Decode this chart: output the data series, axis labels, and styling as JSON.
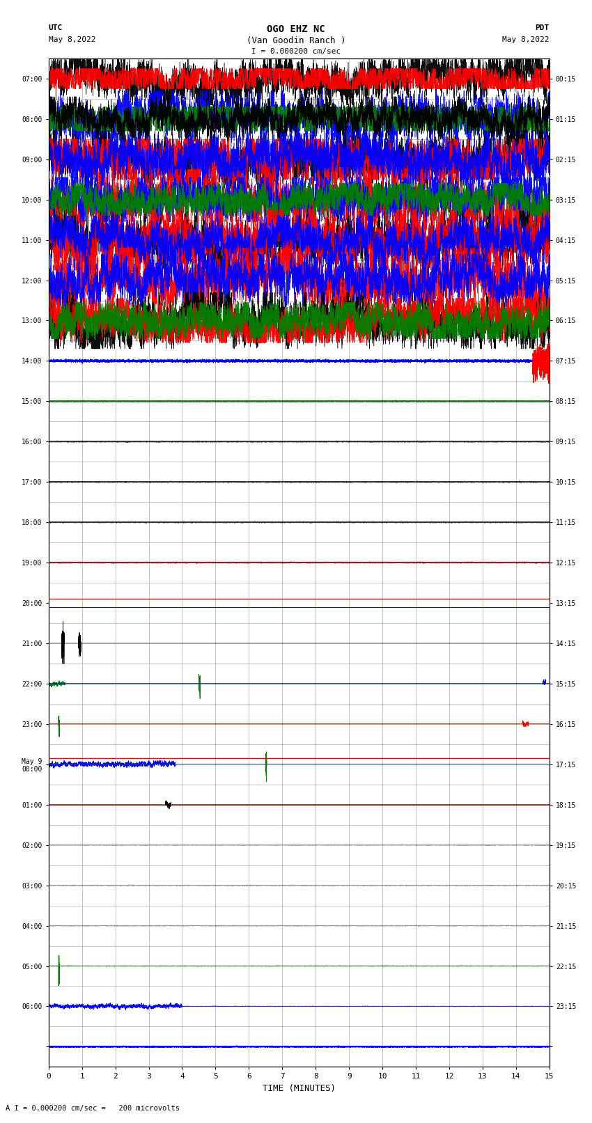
{
  "title_line1": "OGO EHZ NC",
  "title_line2": "(Van Goodin Ranch )",
  "scale_label": "I = 0.000200 cm/sec",
  "bottom_label": "A I = 0.000200 cm/sec =   200 microvolts",
  "utc_label": "UTC",
  "utc_date": "May 8,2022",
  "pdt_label": "PDT",
  "pdt_date": "May 8,2022",
  "xlabel": "TIME (MINUTES)",
  "left_times_utc": [
    "07:00",
    "08:00",
    "09:00",
    "10:00",
    "11:00",
    "12:00",
    "13:00",
    "14:00",
    "15:00",
    "16:00",
    "17:00",
    "18:00",
    "19:00",
    "20:00",
    "21:00",
    "22:00",
    "23:00",
    "May 9\n00:00",
    "01:00",
    "02:00",
    "03:00",
    "04:00",
    "05:00",
    "06:00",
    ""
  ],
  "right_times_pdt": [
    "00:15",
    "01:15",
    "02:15",
    "03:15",
    "04:15",
    "05:15",
    "06:15",
    "07:15",
    "08:15",
    "09:15",
    "10:15",
    "11:15",
    "12:15",
    "13:15",
    "14:15",
    "15:15",
    "16:15",
    "17:15",
    "18:15",
    "19:15",
    "20:15",
    "21:15",
    "22:15",
    "23:15",
    ""
  ],
  "num_rows": 25,
  "xlim": [
    0,
    15
  ],
  "xticks": [
    0,
    1,
    2,
    3,
    4,
    5,
    6,
    7,
    8,
    9,
    10,
    11,
    12,
    13,
    14,
    15
  ],
  "bg_color": "#ffffff",
  "grid_color": "#999999",
  "seed": 42
}
